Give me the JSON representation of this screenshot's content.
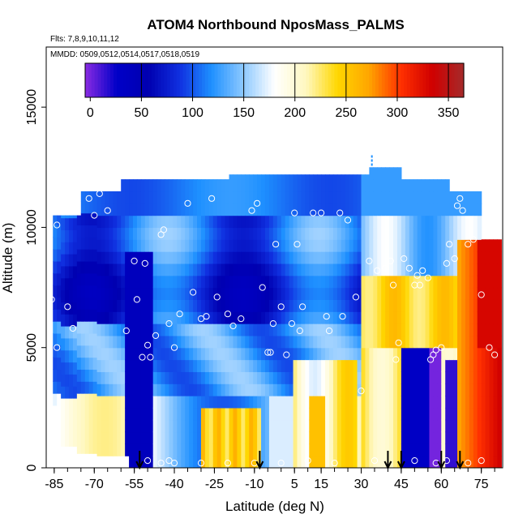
{
  "chart_data": {
    "type": "heatmap",
    "title": "ATOM4 Northbound NposMass_PALMS",
    "subtitle_flights": "Flts: 7,8,9,10,11,12",
    "subtitle_dates": "MMDD: 0509,0512,0514,0517,0518,0519",
    "xlabel": "Latitude (deg N)",
    "ylabel": "Altitude (m)",
    "xlim": [
      -88,
      83
    ],
    "ylim": [
      0,
      17500
    ],
    "x_ticks": [
      -85,
      -70,
      -55,
      -40,
      -25,
      -10,
      5,
      15,
      30,
      45,
      60,
      75
    ],
    "y_ticks": [
      0,
      5000,
      10000,
      15000
    ],
    "colorbar": {
      "ticks": [
        0,
        50,
        100,
        150,
        200,
        250,
        300,
        350
      ],
      "range": [
        -5,
        365
      ],
      "stops": [
        "#8a2be2",
        "#0000c8",
        "#0000b0",
        "#1030e0",
        "#1e90ff",
        "#8cc8ff",
        "#ffffff",
        "#fff8c0",
        "#ffd700",
        "#ffa500",
        "#ff3000",
        "#d00000",
        "#a52a2a"
      ]
    },
    "flight_turn_latitudes": [
      -53,
      -8,
      40,
      45,
      60,
      67
    ],
    "dashed_marker": {
      "lat": 34,
      "alt_top": 13000,
      "alt_bottom": 12500
    },
    "sample_points": [
      [
        -84,
        10100
      ],
      [
        -86,
        7000
      ],
      [
        -84,
        5000
      ],
      [
        -80,
        6700
      ],
      [
        -78,
        5800
      ],
      [
        -87,
        3400
      ],
      [
        -86,
        0
      ],
      [
        -72,
        11200
      ],
      [
        -68,
        11400
      ],
      [
        -65,
        10700
      ],
      [
        -70,
        10500
      ],
      [
        -58,
        5700
      ],
      [
        -55,
        8600
      ],
      [
        -51,
        8500
      ],
      [
        -54,
        7000
      ],
      [
        -52,
        4600
      ],
      [
        -50,
        5100
      ],
      [
        -49,
        4600
      ],
      [
        -47,
        5500
      ],
      [
        -45,
        9700
      ],
      [
        -44,
        9900
      ],
      [
        -42,
        6000
      ],
      [
        -40,
        5000
      ],
      [
        -38,
        6400
      ],
      [
        -35,
        11000
      ],
      [
        -33,
        7300
      ],
      [
        -30,
        6200
      ],
      [
        -28,
        6300
      ],
      [
        -26,
        11200
      ],
      [
        -24,
        7100
      ],
      [
        -20,
        6400
      ],
      [
        -18,
        5900
      ],
      [
        -15,
        6200
      ],
      [
        -11,
        10700
      ],
      [
        -9,
        11000
      ],
      [
        -7,
        7500
      ],
      [
        -5,
        4800
      ],
      [
        -4,
        4800
      ],
      [
        -3,
        6000
      ],
      [
        -2,
        9300
      ],
      [
        0,
        6700
      ],
      [
        2,
        4700
      ],
      [
        4,
        6000
      ],
      [
        5,
        10600
      ],
      [
        6,
        9300
      ],
      [
        7,
        5700
      ],
      [
        8,
        6700
      ],
      [
        12,
        10600
      ],
      [
        15,
        10600
      ],
      [
        17,
        6300
      ],
      [
        18,
        5700
      ],
      [
        22,
        10600
      ],
      [
        23,
        6300
      ],
      [
        25,
        10300
      ],
      [
        28,
        7100
      ],
      [
        30,
        3200
      ],
      [
        33,
        8600
      ],
      [
        36,
        8200
      ],
      [
        39,
        8300
      ],
      [
        41,
        8600
      ],
      [
        42,
        7600
      ],
      [
        43,
        4500
      ],
      [
        44,
        5200
      ],
      [
        46,
        8700
      ],
      [
        48,
        8300
      ],
      [
        50,
        7600
      ],
      [
        51,
        8000
      ],
      [
        52,
        7600
      ],
      [
        53,
        8200
      ],
      [
        55,
        7900
      ],
      [
        56,
        4500
      ],
      [
        57,
        4700
      ],
      [
        58,
        4900
      ],
      [
        60,
        5000
      ],
      [
        62,
        8500
      ],
      [
        63,
        9300
      ],
      [
        65,
        8700
      ],
      [
        66,
        10900
      ],
      [
        67,
        11200
      ],
      [
        68,
        10700
      ],
      [
        70,
        9300
      ],
      [
        72,
        9500
      ],
      [
        75,
        7200
      ],
      [
        78,
        5000
      ],
      [
        80,
        4700
      ],
      [
        -50,
        300
      ],
      [
        -45,
        200
      ],
      [
        -40,
        200
      ],
      [
        -30,
        200
      ],
      [
        -20,
        200
      ],
      [
        -10,
        200
      ],
      [
        0,
        200
      ],
      [
        10,
        300
      ],
      [
        20,
        200
      ],
      [
        35,
        300
      ],
      [
        50,
        300
      ],
      [
        58,
        200
      ],
      [
        62,
        300
      ],
      [
        70,
        200
      ],
      [
        75,
        300
      ],
      [
        -42,
        300
      ]
    ]
  }
}
